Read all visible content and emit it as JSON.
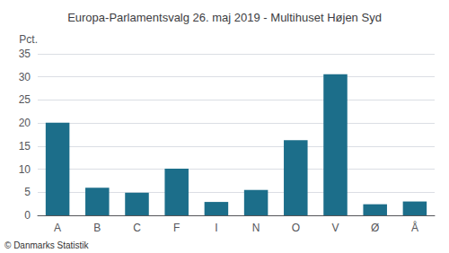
{
  "chart_data": {
    "type": "bar",
    "title": "Europa-Parlamentsvalg 26. maj 2019 - Multihuset Højen Syd",
    "ylabel": "Pct.",
    "annotations": [
      "© Danmarks Statistik"
    ],
    "categories": [
      "A",
      "B",
      "C",
      "F",
      "I",
      "N",
      "O",
      "V",
      "Ø",
      "Å"
    ],
    "values": [
      20.1,
      6.0,
      4.9,
      10.1,
      2.9,
      5.5,
      16.3,
      30.6,
      2.4,
      3.0
    ],
    "color": "#1c6e8a",
    "ylim": [
      0,
      35
    ],
    "yticks": [
      0,
      5,
      10,
      15,
      20,
      25,
      30,
      35
    ],
    "grid": true
  }
}
